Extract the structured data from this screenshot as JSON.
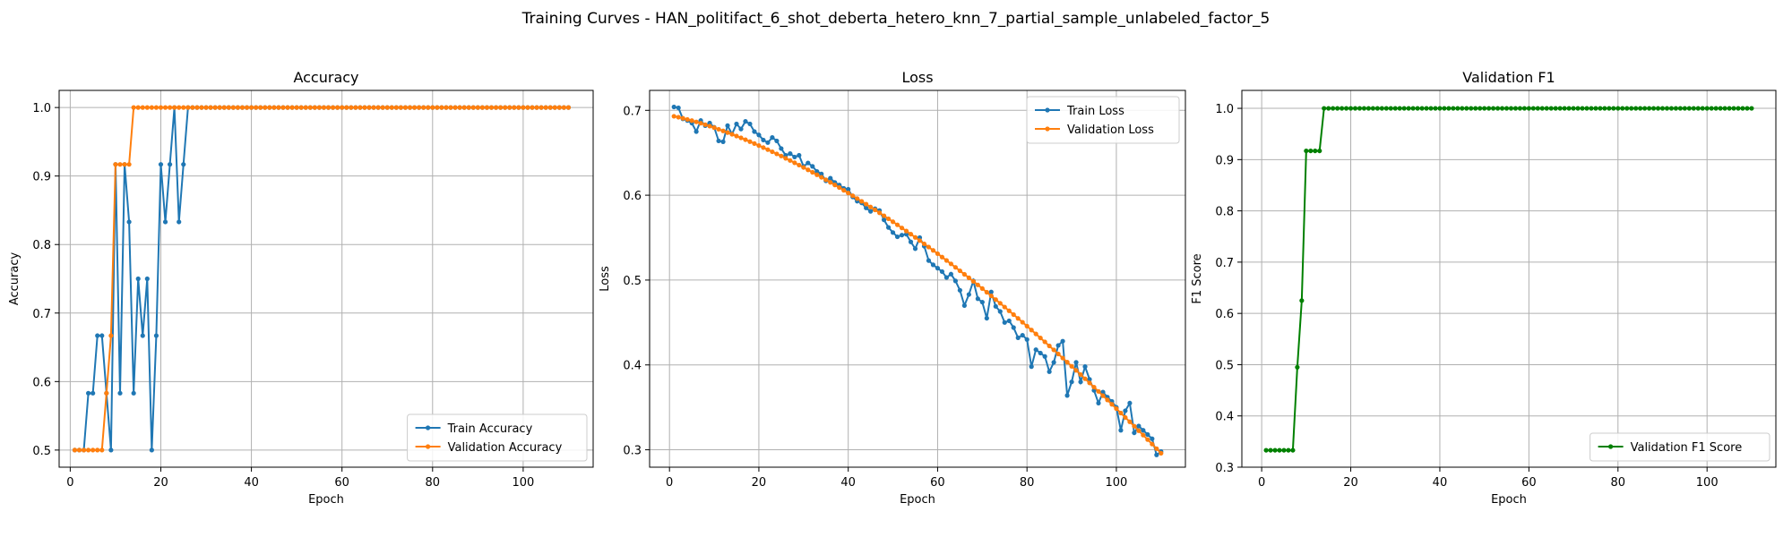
{
  "figure": {
    "suptitle": "Training Curves - HAN_politifact_6_shot_deberta_hetero_knn_7_partial_sample_unlabeled_factor_5"
  },
  "colors": {
    "blue": "#1f77b4",
    "orange": "#ff7f0e",
    "green": "#008000",
    "grid": "#b0b0b0"
  },
  "chart_data": [
    {
      "type": "line",
      "title": "Accuracy",
      "xlabel": "Epoch",
      "ylabel": "Accuracy",
      "xlim": [
        -2.45,
        115.45
      ],
      "ylim": [
        0.475,
        1.025
      ],
      "xticks": [
        0,
        20,
        40,
        60,
        80,
        100
      ],
      "yticks": [
        0.5,
        0.6,
        0.7,
        0.8,
        0.9,
        1.0
      ],
      "ytick_decimals": 1,
      "grid": true,
      "legend": "lower-right",
      "epochs": 110,
      "series": [
        {
          "name": "Train Accuracy",
          "color": "#1f77b4",
          "values": [
            0.5,
            0.5,
            0.5,
            0.583,
            0.583,
            0.667,
            0.667,
            0.583,
            0.5,
            0.917,
            0.583,
            0.917,
            0.833,
            0.583,
            0.75,
            0.667,
            0.75,
            0.5,
            0.667,
            0.917,
            0.833,
            0.917,
            1.0,
            0.833,
            0.917,
            1.0
          ],
          "fill": 1.0
        },
        {
          "name": "Validation Accuracy",
          "color": "#ff7f0e",
          "values": [
            0.5,
            0.5,
            0.5,
            0.5,
            0.5,
            0.5,
            0.5,
            0.583,
            0.667,
            0.917,
            0.917,
            0.917,
            0.917,
            1.0
          ],
          "fill": 1.0
        }
      ]
    },
    {
      "type": "line",
      "title": "Loss",
      "xlabel": "Epoch",
      "ylabel": "Loss",
      "xlim": [
        -4.45,
        115.45
      ],
      "ylim": [
        0.2795,
        0.7235
      ],
      "xticks": [
        0,
        20,
        40,
        60,
        80,
        100
      ],
      "yticks": [
        0.3,
        0.4,
        0.5,
        0.6,
        0.7
      ],
      "ytick_decimals": 1,
      "grid": true,
      "legend": "upper-right",
      "epochs": 110,
      "series": [
        {
          "name": "Train Loss",
          "color": "#1f77b4",
          "values": [
            0.704,
            0.703,
            0.69,
            0.688,
            0.685,
            0.675,
            0.688,
            0.682,
            0.685,
            0.68,
            0.664,
            0.663,
            0.682,
            0.672,
            0.684,
            0.678,
            0.687,
            0.684,
            0.675,
            0.671,
            0.665,
            0.662,
            0.668,
            0.664,
            0.655,
            0.647,
            0.649,
            0.645,
            0.647,
            0.634,
            0.638,
            0.634,
            0.628,
            0.625,
            0.617,
            0.62,
            0.615,
            0.612,
            0.608,
            0.607,
            0.598,
            0.593,
            0.591,
            0.585,
            0.581,
            0.584,
            0.582,
            0.571,
            0.562,
            0.556,
            0.551,
            0.553,
            0.554,
            0.545,
            0.537,
            0.55,
            0.54,
            0.523,
            0.518,
            0.514,
            0.51,
            0.503,
            0.507,
            0.499,
            0.488,
            0.47,
            0.483,
            0.499,
            0.478,
            0.474,
            0.455,
            0.486,
            0.469,
            0.463,
            0.45,
            0.452,
            0.444,
            0.432,
            0.435,
            0.43,
            0.398,
            0.418,
            0.414,
            0.41,
            0.392,
            0.403,
            0.423,
            0.428,
            0.364,
            0.38,
            0.403,
            0.38,
            0.398,
            0.383,
            0.37,
            0.355,
            0.368,
            0.362,
            0.357,
            0.35,
            0.323,
            0.346,
            0.355,
            0.32,
            0.328,
            0.323,
            0.318,
            0.313,
            0.294,
            0.298
          ]
        },
        {
          "name": "Validation Loss",
          "color": "#ff7f0e",
          "curve": {
            "start": 0.693,
            "end": 0.296,
            "points": 110,
            "knee": 0.68,
            "bow": 0.008
          }
        }
      ]
    },
    {
      "type": "line",
      "title": "Validation F1",
      "xlabel": "Epoch",
      "ylabel": "F1 Score",
      "xlim": [
        -4.45,
        115.45
      ],
      "ylim": [
        0.3,
        1.035
      ],
      "xticks": [
        0,
        20,
        40,
        60,
        80,
        100
      ],
      "yticks": [
        0.3,
        0.4,
        0.5,
        0.6,
        0.7,
        0.8,
        0.9,
        1.0
      ],
      "ytick_decimals": 1,
      "grid": true,
      "legend": "lower-right",
      "epochs": 110,
      "series": [
        {
          "name": "Validation F1 Score",
          "color": "#008000",
          "values": [
            0.333,
            0.333,
            0.333,
            0.333,
            0.333,
            0.333,
            0.333,
            0.495,
            0.625,
            0.917,
            0.917,
            0.917,
            0.917,
            1.0
          ],
          "fill": 1.0
        }
      ]
    }
  ]
}
